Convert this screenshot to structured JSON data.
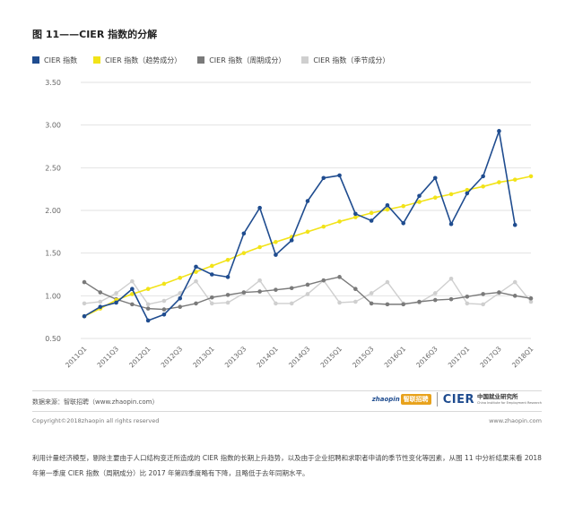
{
  "figure_title": "图 11——CIER 指数的分解",
  "colors": {
    "cier": "#1f4c8f",
    "trend": "#f2e318",
    "cycle": "#7a7a7a",
    "season": "#cfcfcf",
    "grid": "#e2e2e2",
    "tick": "#666666"
  },
  "legend": [
    {
      "label": "CIER 指数",
      "color": "#1f4c8f"
    },
    {
      "label": "CIER 指数（趋势成分）",
      "color": "#f2e318"
    },
    {
      "label": "CIER 指数（周期成分）",
      "color": "#7a7a7a"
    },
    {
      "label": "CIER 指数（季节成分）",
      "color": "#cfcfcf"
    }
  ],
  "chart_data": {
    "type": "line",
    "title": "图 11——CIER 指数的分解",
    "xlabel": "",
    "ylabel": "",
    "ylim": [
      0.5,
      3.5
    ],
    "yticks": [
      "3.50",
      "3.00",
      "2.50",
      "2.00",
      "1.50",
      "1.00",
      "0.50"
    ],
    "ytick_values": [
      3.5,
      3.0,
      2.5,
      2.0,
      1.5,
      1.0,
      0.5
    ],
    "grid": true,
    "legend_position": "top-left",
    "x": [
      "2011Q1",
      "2011Q2",
      "2011Q3",
      "2011Q4",
      "2012Q1",
      "2012Q2",
      "2012Q3",
      "2012Q4",
      "2013Q1",
      "2013Q2",
      "2013Q3",
      "2013Q4",
      "2014Q1",
      "2014Q2",
      "2014Q3",
      "2014Q4",
      "2015Q1",
      "2015Q2",
      "2015Q3",
      "2015Q4",
      "2016Q1",
      "2016Q2",
      "2016Q3",
      "2016Q4",
      "2017Q1",
      "2017Q2",
      "2017Q3",
      "2017Q4",
      "2018Q1"
    ],
    "tick_labels": [
      "2011Q1",
      "2011Q3",
      "2012Q1",
      "2012Q3",
      "2013Q1",
      "2013Q3",
      "2014Q1",
      "2014Q3",
      "2015Q1",
      "2015Q3",
      "2016Q1",
      "2016Q3",
      "2017Q1",
      "2017Q3",
      "2018Q1"
    ],
    "series": [
      {
        "name": "CIER 指数",
        "color": "#1f4c8f",
        "markers": true,
        "width": 1.6,
        "values": [
          0.76,
          0.87,
          0.92,
          1.08,
          0.71,
          0.78,
          0.97,
          1.34,
          1.25,
          1.22,
          1.73,
          2.03,
          1.48,
          1.65,
          2.11,
          2.38,
          2.41,
          1.96,
          1.88,
          2.06,
          1.85,
          2.17,
          2.38,
          1.84,
          2.2,
          2.4,
          2.93,
          1.83,
          null
        ]
      },
      {
        "name": "CIER 指数（趋势成分）",
        "color": "#f2e318",
        "markers": true,
        "width": 1.6,
        "values": [
          0.76,
          0.85,
          0.95,
          1.02,
          1.08,
          1.14,
          1.21,
          1.28,
          1.35,
          1.42,
          1.5,
          1.57,
          1.63,
          1.69,
          1.75,
          1.81,
          1.87,
          1.92,
          1.97,
          2.01,
          2.05,
          2.1,
          2.15,
          2.19,
          2.24,
          2.28,
          2.33,
          2.36,
          2.4
        ]
      },
      {
        "name": "CIER 指数（周期成分）",
        "color": "#7a7a7a",
        "markers": true,
        "width": 1.4,
        "values": [
          1.16,
          1.04,
          0.96,
          0.9,
          0.85,
          0.84,
          0.87,
          0.91,
          0.98,
          1.01,
          1.04,
          1.05,
          1.07,
          1.09,
          1.13,
          1.18,
          1.22,
          1.08,
          0.91,
          0.9,
          0.9,
          0.93,
          0.95,
          0.96,
          0.99,
          1.02,
          1.04,
          1.0,
          0.97
        ]
      },
      {
        "name": "CIER 指数（季节成分）",
        "color": "#cfcfcf",
        "markers": true,
        "width": 1.4,
        "values": [
          0.91,
          0.93,
          1.03,
          1.17,
          0.9,
          0.94,
          1.03,
          1.17,
          0.91,
          0.92,
          1.03,
          1.18,
          0.91,
          0.91,
          1.02,
          1.18,
          0.92,
          0.93,
          1.03,
          1.16,
          0.91,
          0.92,
          1.03,
          1.2,
          0.91,
          0.9,
          1.03,
          1.16,
          0.93
        ]
      }
    ]
  },
  "footer": {
    "source": "数据来源：智联招聘（www.zhaopin.com）",
    "copyright": "Copyright©2018zhaopin all rights reserved",
    "site": "www.zhaopin.com",
    "zhaopin_logo": "zhaopin",
    "zhaopin_badge": "智联招聘",
    "cier_logo": "CIER",
    "cier_name": "中国就业研究所",
    "cier_en": "China Institute for Employment Research"
  },
  "paragraph": "利用计量经济模型，剔除主要由于人口结构变迁所造成的 CIER 指数的长期上升趋势，以及由于企业招聘和求职者申请的季节性变化等因素，从图 11 中分析结果来看 2018 年第一季度 CIER 指数（周期成分）比 2017 年第四季度略有下降，且略低于去年同期水平。"
}
